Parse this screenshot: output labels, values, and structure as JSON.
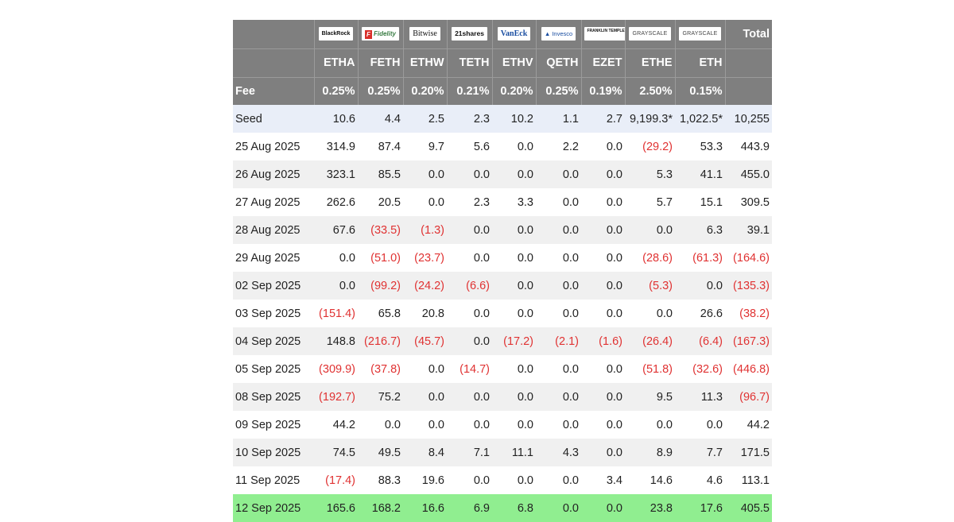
{
  "table": {
    "issuers": [
      {
        "logo_text": "BlackRock",
        "logo_icon": "blackrock-logo"
      },
      {
        "logo_text": "Fidelity",
        "logo_icon": "fidelity-logo"
      },
      {
        "logo_text": "Bitwise",
        "logo_icon": "bitwise-logo"
      },
      {
        "logo_text": "21shares",
        "logo_icon": "21shares-logo"
      },
      {
        "logo_text": "VanEck",
        "logo_icon": "vaneck-logo"
      },
      {
        "logo_text": "Invesco",
        "logo_icon": "invesco-logo"
      },
      {
        "logo_text": "FRANKLIN TEMPLETON",
        "logo_icon": "franklin-templeton-logo"
      },
      {
        "logo_text": "GRAYSCALE",
        "logo_icon": "grayscale-logo"
      },
      {
        "logo_text": "GRAYSCALE",
        "logo_icon": "grayscale-logo"
      }
    ],
    "total_header": "Total",
    "tickers": [
      "ETHA",
      "FETH",
      "ETHW",
      "TETH",
      "ETHV",
      "QETH",
      "EZET",
      "ETHE",
      "ETH"
    ],
    "fee_label": "Fee",
    "fees": [
      "0.25%",
      "0.25%",
      "0.20%",
      "0.21%",
      "0.20%",
      "0.25%",
      "0.19%",
      "2.50%",
      "0.15%"
    ],
    "rows": [
      {
        "label": "Seed",
        "values": [
          "10.6",
          "4.4",
          "2.5",
          "2.3",
          "10.2",
          "1.1",
          "2.7",
          "9,199.3*",
          "1,022.5*",
          "10,255"
        ]
      },
      {
        "label": "25 Aug 2025",
        "values": [
          "314.9",
          "87.4",
          "9.7",
          "5.6",
          "0.0",
          "2.2",
          "0.0",
          "(29.2)",
          "53.3",
          "443.9"
        ]
      },
      {
        "label": "26 Aug 2025",
        "values": [
          "323.1",
          "85.5",
          "0.0",
          "0.0",
          "0.0",
          "0.0",
          "0.0",
          "5.3",
          "41.1",
          "455.0"
        ]
      },
      {
        "label": "27 Aug 2025",
        "values": [
          "262.6",
          "20.5",
          "0.0",
          "2.3",
          "3.3",
          "0.0",
          "0.0",
          "5.7",
          "15.1",
          "309.5"
        ]
      },
      {
        "label": "28 Aug 2025",
        "values": [
          "67.6",
          "(33.5)",
          "(1.3)",
          "0.0",
          "0.0",
          "0.0",
          "0.0",
          "0.0",
          "6.3",
          "39.1"
        ]
      },
      {
        "label": "29 Aug 2025",
        "values": [
          "0.0",
          "(51.0)",
          "(23.7)",
          "0.0",
          "0.0",
          "0.0",
          "0.0",
          "(28.6)",
          "(61.3)",
          "(164.6)"
        ]
      },
      {
        "label": "02 Sep 2025",
        "values": [
          "0.0",
          "(99.2)",
          "(24.2)",
          "(6.6)",
          "0.0",
          "0.0",
          "0.0",
          "(5.3)",
          "0.0",
          "(135.3)"
        ]
      },
      {
        "label": "03 Sep 2025",
        "values": [
          "(151.4)",
          "65.8",
          "20.8",
          "0.0",
          "0.0",
          "0.0",
          "0.0",
          "0.0",
          "26.6",
          "(38.2)"
        ]
      },
      {
        "label": "04 Sep 2025",
        "values": [
          "148.8",
          "(216.7)",
          "(45.7)",
          "0.0",
          "(17.2)",
          "(2.1)",
          "(1.6)",
          "(26.4)",
          "(6.4)",
          "(167.3)"
        ]
      },
      {
        "label": "05 Sep 2025",
        "values": [
          "(309.9)",
          "(37.8)",
          "0.0",
          "(14.7)",
          "0.0",
          "0.0",
          "0.0",
          "(51.8)",
          "(32.6)",
          "(446.8)"
        ]
      },
      {
        "label": "08 Sep 2025",
        "values": [
          "(192.7)",
          "75.2",
          "0.0",
          "0.0",
          "0.0",
          "0.0",
          "0.0",
          "9.5",
          "11.3",
          "(96.7)"
        ]
      },
      {
        "label": "09 Sep 2025",
        "values": [
          "44.2",
          "0.0",
          "0.0",
          "0.0",
          "0.0",
          "0.0",
          "0.0",
          "0.0",
          "0.0",
          "44.2"
        ]
      },
      {
        "label": "10 Sep 2025",
        "values": [
          "74.5",
          "49.5",
          "8.4",
          "7.1",
          "11.1",
          "4.3",
          "0.0",
          "8.9",
          "7.7",
          "171.5"
        ]
      },
      {
        "label": "11 Sep 2025",
        "values": [
          "(17.4)",
          "88.3",
          "19.6",
          "0.0",
          "0.0",
          "0.0",
          "3.4",
          "14.6",
          "4.6",
          "113.1"
        ]
      },
      {
        "label": "12 Sep 2025",
        "values": [
          "165.6",
          "168.2",
          "16.6",
          "6.9",
          "6.8",
          "0.0",
          "0.0",
          "23.8",
          "17.6",
          "405.5"
        ]
      }
    ],
    "colors": {
      "header_bg": "#7f7f7f",
      "seed_bg": "#e9eef8",
      "alt_row_bg": "#f0f0f0",
      "latest_row_bg": "#90ee90",
      "negative_text": "#e03232"
    }
  }
}
